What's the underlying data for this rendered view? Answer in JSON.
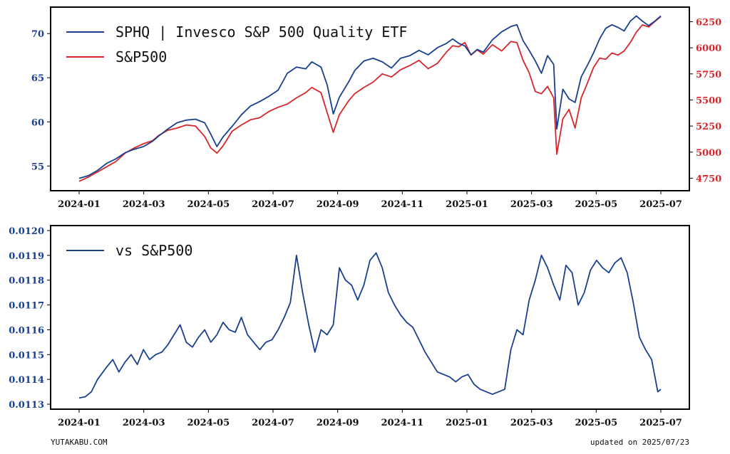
{
  "footer": {
    "site": "YUTAKABU.COM",
    "updated": "updated on 2025/07/23"
  },
  "colors": {
    "sphq": "#1a3f8f",
    "sp500": "#d7262b",
    "ratio": "#1a3f8f",
    "axis": "#000000"
  },
  "chart_data": [
    {
      "type": "line",
      "x_ticks": [
        "2024-01",
        "2024-03",
        "2024-05",
        "2024-07",
        "2024-09",
        "2024-11",
        "2025-01",
        "2025-03",
        "2025-05",
        "2025-07"
      ],
      "x_range": [
        0,
        19
      ],
      "y_left_ticks": [
        55,
        60,
        65,
        70
      ],
      "y_left_range": [
        52.2,
        73.0
      ],
      "y_right_ticks": [
        4750,
        5000,
        5250,
        5500,
        5750,
        6000,
        6250
      ],
      "y_right_range": [
        4630,
        6390
      ],
      "legend": "top-left",
      "series": [
        {
          "name": "SPHQ | Invesco S&P 500 Quality ETF",
          "axis": "left",
          "points": [
            [
              0.0,
              53.6
            ],
            [
              0.3,
              53.9
            ],
            [
              0.6,
              54.5
            ],
            [
              0.9,
              55.3
            ],
            [
              1.2,
              55.8
            ],
            [
              1.5,
              56.5
            ],
            [
              1.8,
              56.9
            ],
            [
              2.1,
              57.2
            ],
            [
              2.4,
              57.8
            ],
            [
              2.6,
              58.4
            ],
            [
              2.9,
              59.2
            ],
            [
              3.2,
              59.9
            ],
            [
              3.5,
              60.2
            ],
            [
              3.8,
              60.3
            ],
            [
              4.1,
              59.9
            ],
            [
              4.3,
              58.6
            ],
            [
              4.5,
              57.2
            ],
            [
              4.7,
              58.3
            ],
            [
              5.0,
              59.5
            ],
            [
              5.3,
              60.8
            ],
            [
              5.6,
              61.8
            ],
            [
              5.9,
              62.3
            ],
            [
              6.2,
              62.9
            ],
            [
              6.5,
              63.6
            ],
            [
              6.8,
              65.5
            ],
            [
              7.1,
              66.2
            ],
            [
              7.4,
              66.0
            ],
            [
              7.6,
              66.8
            ],
            [
              7.9,
              66.2
            ],
            [
              8.1,
              64.2
            ],
            [
              8.3,
              60.9
            ],
            [
              8.5,
              62.8
            ],
            [
              8.8,
              64.5
            ],
            [
              9.0,
              65.8
            ],
            [
              9.3,
              66.9
            ],
            [
              9.6,
              67.2
            ],
            [
              9.9,
              66.8
            ],
            [
              10.2,
              66.1
            ],
            [
              10.5,
              67.2
            ],
            [
              10.8,
              67.5
            ],
            [
              11.1,
              68.1
            ],
            [
              11.4,
              67.6
            ],
            [
              11.7,
              68.4
            ],
            [
              12.0,
              68.9
            ],
            [
              12.2,
              69.4
            ],
            [
              12.4,
              68.9
            ],
            [
              12.6,
              68.6
            ],
            [
              12.8,
              67.6
            ],
            [
              13.0,
              68.2
            ],
            [
              13.2,
              67.9
            ],
            [
              13.5,
              69.3
            ],
            [
              13.8,
              70.2
            ],
            [
              14.1,
              70.8
            ],
            [
              14.3,
              71.0
            ],
            [
              14.5,
              69.2
            ],
            [
              14.7,
              68.1
            ],
            [
              14.9,
              66.9
            ],
            [
              15.1,
              65.5
            ],
            [
              15.3,
              67.5
            ],
            [
              15.5,
              66.5
            ],
            [
              15.6,
              59.2
            ],
            [
              15.8,
              63.7
            ],
            [
              16.0,
              62.6
            ],
            [
              16.2,
              62.2
            ],
            [
              16.4,
              65.1
            ],
            [
              16.6,
              66.4
            ],
            [
              16.8,
              67.8
            ],
            [
              17.0,
              69.4
            ],
            [
              17.2,
              70.6
            ],
            [
              17.4,
              71.0
            ],
            [
              17.6,
              70.7
            ],
            [
              17.8,
              70.3
            ],
            [
              18.0,
              71.4
            ],
            [
              18.2,
              72.0
            ],
            [
              18.4,
              71.4
            ],
            [
              18.6,
              70.9
            ],
            [
              18.8,
              71.4
            ],
            [
              19.0,
              72.0
            ]
          ]
        },
        {
          "name": "S&P500",
          "axis": "right",
          "points": [
            [
              0.0,
              4720
            ],
            [
              0.3,
              4760
            ],
            [
              0.6,
              4810
            ],
            [
              0.9,
              4860
            ],
            [
              1.2,
              4910
            ],
            [
              1.5,
              4990
            ],
            [
              1.8,
              5040
            ],
            [
              2.1,
              5080
            ],
            [
              2.4,
              5110
            ],
            [
              2.6,
              5160
            ],
            [
              2.9,
              5210
            ],
            [
              3.2,
              5230
            ],
            [
              3.5,
              5260
            ],
            [
              3.8,
              5250
            ],
            [
              4.1,
              5150
            ],
            [
              4.3,
              5040
            ],
            [
              4.5,
              4990
            ],
            [
              4.7,
              5060
            ],
            [
              5.0,
              5200
            ],
            [
              5.3,
              5260
            ],
            [
              5.6,
              5310
            ],
            [
              5.9,
              5330
            ],
            [
              6.2,
              5390
            ],
            [
              6.5,
              5430
            ],
            [
              6.8,
              5460
            ],
            [
              7.1,
              5520
            ],
            [
              7.4,
              5570
            ],
            [
              7.6,
              5620
            ],
            [
              7.9,
              5570
            ],
            [
              8.1,
              5380
            ],
            [
              8.3,
              5190
            ],
            [
              8.5,
              5360
            ],
            [
              8.8,
              5490
            ],
            [
              9.0,
              5560
            ],
            [
              9.3,
              5620
            ],
            [
              9.6,
              5670
            ],
            [
              9.9,
              5750
            ],
            [
              10.2,
              5720
            ],
            [
              10.5,
              5790
            ],
            [
              10.8,
              5830
            ],
            [
              11.1,
              5880
            ],
            [
              11.4,
              5800
            ],
            [
              11.7,
              5850
            ],
            [
              12.0,
              5960
            ],
            [
              12.2,
              6020
            ],
            [
              12.4,
              6010
            ],
            [
              12.6,
              6050
            ],
            [
              12.8,
              5930
            ],
            [
              13.0,
              5980
            ],
            [
              13.2,
              5940
            ],
            [
              13.5,
              6030
            ],
            [
              13.8,
              5970
            ],
            [
              14.1,
              6060
            ],
            [
              14.3,
              6050
            ],
            [
              14.5,
              5880
            ],
            [
              14.7,
              5760
            ],
            [
              14.9,
              5580
            ],
            [
              15.1,
              5560
            ],
            [
              15.3,
              5630
            ],
            [
              15.5,
              5520
            ],
            [
              15.6,
              4980
            ],
            [
              15.8,
              5320
            ],
            [
              16.0,
              5410
            ],
            [
              16.2,
              5230
            ],
            [
              16.4,
              5520
            ],
            [
              16.6,
              5660
            ],
            [
              16.8,
              5810
            ],
            [
              17.0,
              5900
            ],
            [
              17.2,
              5890
            ],
            [
              17.4,
              5950
            ],
            [
              17.6,
              5930
            ],
            [
              17.8,
              5970
            ],
            [
              18.0,
              6050
            ],
            [
              18.2,
              6150
            ],
            [
              18.4,
              6220
            ],
            [
              18.6,
              6200
            ],
            [
              18.8,
              6250
            ],
            [
              19.0,
              6300
            ]
          ]
        }
      ]
    },
    {
      "type": "line",
      "x_ticks": [
        "2024-01",
        "2024-03",
        "2024-05",
        "2024-07",
        "2024-09",
        "2024-11",
        "2025-01",
        "2025-03",
        "2025-05",
        "2025-07"
      ],
      "x_range": [
        0,
        19
      ],
      "y_ticks": [
        "0.0113",
        "0.0114",
        "0.0115",
        "0.0116",
        "0.0117",
        "0.0118",
        "0.0119",
        "0.0120"
      ],
      "y_range": [
        0.01128,
        0.01202
      ],
      "legend": "top-left",
      "series": [
        {
          "name": "vs S&P500",
          "points": [
            [
              0.0,
              0.011325
            ],
            [
              0.2,
              0.01133
            ],
            [
              0.4,
              0.01135
            ],
            [
              0.6,
              0.0114
            ],
            [
              0.9,
              0.01145
            ],
            [
              1.1,
              0.01148
            ],
            [
              1.3,
              0.01143
            ],
            [
              1.5,
              0.01147
            ],
            [
              1.7,
              0.0115
            ],
            [
              1.9,
              0.01146
            ],
            [
              2.1,
              0.01152
            ],
            [
              2.3,
              0.01148
            ],
            [
              2.5,
              0.0115
            ],
            [
              2.7,
              0.01151
            ],
            [
              2.9,
              0.01154
            ],
            [
              3.1,
              0.01158
            ],
            [
              3.3,
              0.01162
            ],
            [
              3.5,
              0.01155
            ],
            [
              3.7,
              0.01153
            ],
            [
              3.9,
              0.01157
            ],
            [
              4.1,
              0.0116
            ],
            [
              4.3,
              0.01155
            ],
            [
              4.5,
              0.01158
            ],
            [
              4.7,
              0.01163
            ],
            [
              4.9,
              0.0116
            ],
            [
              5.1,
              0.01159
            ],
            [
              5.3,
              0.01165
            ],
            [
              5.5,
              0.01158
            ],
            [
              5.7,
              0.01155
            ],
            [
              5.9,
              0.01152
            ],
            [
              6.1,
              0.01155
            ],
            [
              6.3,
              0.01156
            ],
            [
              6.5,
              0.0116
            ],
            [
              6.7,
              0.01165
            ],
            [
              6.9,
              0.01171
            ],
            [
              7.1,
              0.0119
            ],
            [
              7.3,
              0.01175
            ],
            [
              7.5,
              0.01162
            ],
            [
              7.7,
              0.01151
            ],
            [
              7.9,
              0.0116
            ],
            [
              8.1,
              0.01158
            ],
            [
              8.3,
              0.01162
            ],
            [
              8.5,
              0.01185
            ],
            [
              8.7,
              0.0118
            ],
            [
              8.9,
              0.01178
            ],
            [
              9.1,
              0.01172
            ],
            [
              9.3,
              0.01178
            ],
            [
              9.5,
              0.01188
            ],
            [
              9.7,
              0.01191
            ],
            [
              9.9,
              0.01185
            ],
            [
              10.1,
              0.01175
            ],
            [
              10.3,
              0.0117
            ],
            [
              10.5,
              0.01166
            ],
            [
              10.7,
              0.01163
            ],
            [
              10.9,
              0.01161
            ],
            [
              11.1,
              0.01156
            ],
            [
              11.3,
              0.01151
            ],
            [
              11.5,
              0.01147
            ],
            [
              11.7,
              0.01143
            ],
            [
              11.9,
              0.01142
            ],
            [
              12.1,
              0.01141
            ],
            [
              12.3,
              0.01139
            ],
            [
              12.5,
              0.01141
            ],
            [
              12.7,
              0.01142
            ],
            [
              12.9,
              0.01138
            ],
            [
              13.1,
              0.01136
            ],
            [
              13.3,
              0.01135
            ],
            [
              13.5,
              0.01134
            ],
            [
              13.7,
              0.01135
            ],
            [
              13.9,
              0.01136
            ],
            [
              14.1,
              0.01152
            ],
            [
              14.3,
              0.0116
            ],
            [
              14.5,
              0.01158
            ],
            [
              14.7,
              0.01172
            ],
            [
              14.9,
              0.0118
            ],
            [
              15.1,
              0.0119
            ],
            [
              15.3,
              0.01185
            ],
            [
              15.5,
              0.01178
            ],
            [
              15.7,
              0.01172
            ],
            [
              15.9,
              0.01186
            ],
            [
              16.1,
              0.01183
            ],
            [
              16.3,
              0.0117
            ],
            [
              16.5,
              0.01175
            ],
            [
              16.7,
              0.01184
            ],
            [
              16.9,
              0.01188
            ],
            [
              17.1,
              0.01185
            ],
            [
              17.3,
              0.01183
            ],
            [
              17.5,
              0.01187
            ],
            [
              17.7,
              0.01189
            ],
            [
              17.9,
              0.01183
            ],
            [
              18.1,
              0.01171
            ],
            [
              18.3,
              0.01157
            ],
            [
              18.5,
              0.01152
            ],
            [
              18.7,
              0.01148
            ],
            [
              18.9,
              0.01135
            ],
            [
              19.0,
              0.01136
            ]
          ]
        }
      ]
    }
  ]
}
